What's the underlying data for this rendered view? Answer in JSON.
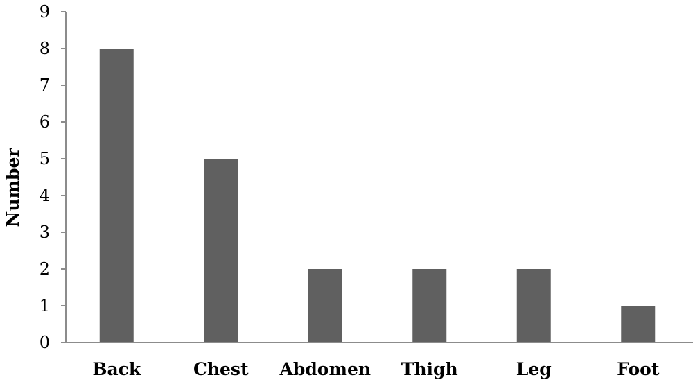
{
  "chart_data": {
    "type": "bar",
    "title": "",
    "xlabel": "",
    "ylabel": "Number",
    "categories": [
      "Back",
      "Chest",
      "Abdomen",
      "Thigh",
      "Leg",
      "Foot"
    ],
    "values": [
      8,
      5,
      2,
      2,
      2,
      1
    ],
    "ylim": [
      0,
      9
    ],
    "yticks": [
      "0",
      "1",
      "2",
      "3",
      "4",
      "5",
      "6",
      "7",
      "8",
      "9"
    ],
    "grid": false,
    "bar_color": "#606060",
    "axis_color": "#8c8c8c"
  }
}
